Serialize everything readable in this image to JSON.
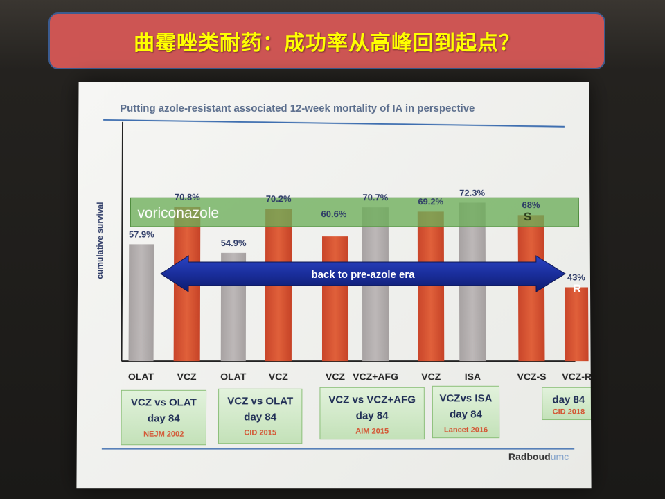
{
  "banner": {
    "title": "曲霉唑类耐药：成功率从高峰回到起点？"
  },
  "slide": {
    "logo_bold": "Radboud",
    "logo_light": "umc",
    "arrow_text": "back to pre-azole era",
    "band_text": "voriconazole",
    "markers": {
      "s": "S",
      "r": "R"
    }
  },
  "colors": {
    "banner_bg": "#cd5553",
    "banner_text": "#ffff00",
    "title_text": "#5a6d8c",
    "olat_bar": "#b3aeae",
    "vcz_bar": "#d4502e",
    "band": "#6dae5a",
    "arrow": "#1a2e9c",
    "study_box": "#cfe8c5",
    "reference_text": "#d4502e"
  },
  "studies": [
    {
      "comparison": "VCZ vs OLAT",
      "day": "day 84",
      "reference": "NEJM 2002"
    },
    {
      "comparison": "VCZ vs OLAT",
      "day": "day 84",
      "reference": "CID 2015"
    },
    {
      "comparison": "VCZ vs VCZ+AFG",
      "day": "day 84",
      "reference": "AIM 2015"
    },
    {
      "comparison": "VCZvs ISA",
      "day": "day 84",
      "reference": "Lancet 2016"
    },
    {
      "comparison": "",
      "day": "day 84",
      "reference": "CID 2018"
    }
  ],
  "chart_data": {
    "type": "bar",
    "title": "Putting azole-resistant associated 12-week mortality of IA in perspective",
    "xlabel": "",
    "ylabel": "cumulative survival",
    "ylim": [
      0,
      100
    ],
    "grid": false,
    "categories": [
      "OLAT",
      "VCZ",
      "OLAT",
      "VCZ",
      "VCZ",
      "VCZ+AFG",
      "VCZ",
      "ISA",
      "VCZ-S",
      "VCZ-R"
    ],
    "values": [
      57.9,
      70.8,
      54.9,
      70.2,
      60.6,
      70.7,
      69.2,
      72.3,
      68,
      43
    ],
    "labels": [
      "57.9%",
      "70.8%",
      "54.9%",
      "70.2%",
      "60.6%",
      "70.7%",
      "69.2%",
      "72.3%",
      "68%",
      "43%"
    ],
    "bar_kinds": [
      "comparator",
      "voriconazole",
      "comparator",
      "voriconazole",
      "voriconazole",
      "comparator",
      "voriconazole",
      "comparator",
      "voriconazole",
      "voriconazole"
    ]
  }
}
